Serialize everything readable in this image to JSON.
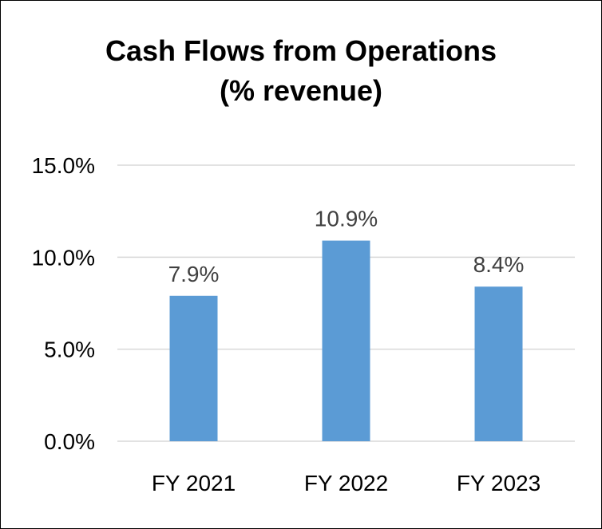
{
  "chart_data": {
    "type": "bar",
    "title": "Cash Flows from Operations",
    "subtitle": "(% revenue)",
    "categories": [
      "FY 2021",
      "FY 2022",
      "FY 2023"
    ],
    "values": [
      7.9,
      10.9,
      8.4
    ],
    "data_labels": [
      "7.9%",
      "10.9%",
      "8.4%"
    ],
    "xlabel": "",
    "ylabel": "",
    "ylim": [
      0,
      15
    ],
    "yticks": [
      0,
      5,
      10,
      15
    ],
    "ytick_labels": [
      "0.0%",
      "5.0%",
      "10.0%",
      "15.0%"
    ],
    "grid": true,
    "legend": "none",
    "bar_color": "#5B9BD5",
    "grid_color": "#D9D9D9",
    "label_color": "#404040"
  }
}
